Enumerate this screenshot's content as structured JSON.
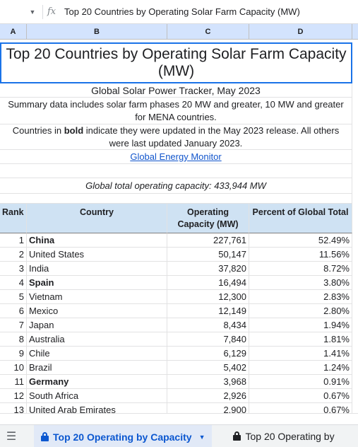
{
  "formula_bar": {
    "dropdown_icon": "caret-down-icon",
    "fx_label": "fx",
    "content": "Top 20 Countries by Operating Solar Farm Capacity (MW)"
  },
  "columns": [
    "A",
    "B",
    "C",
    "D"
  ],
  "sheet": {
    "title": "Top 20 Countries by Operating Solar Farm Capacity (MW)",
    "subtitle": "Global Solar Power Tracker, May 2023",
    "summary": "Summary data includes solar farm phases 20 MW and greater, 10 MW and greater for MENA countries.",
    "note_pre": "Countries in ",
    "note_bold": "bold",
    "note_post": " indicate they were updated in the May 2023 release. All others were last updated January 2023.",
    "link": "Global Energy Monitor",
    "total": "Global total operating capacity: 433,944 MW"
  },
  "table": {
    "headers": {
      "rank": "Rank",
      "country": "Country",
      "capacity": "Operating Capacity (MW)",
      "percent": "Percent of Global Total"
    },
    "rows": [
      {
        "rank": "1",
        "country": "China",
        "capacity": "227,761",
        "percent": "52.49%",
        "bold": true
      },
      {
        "rank": "2",
        "country": "United States",
        "capacity": "50,147",
        "percent": "11.56%",
        "bold": false
      },
      {
        "rank": "3",
        "country": "India",
        "capacity": "37,820",
        "percent": "8.72%",
        "bold": false
      },
      {
        "rank": "4",
        "country": "Spain",
        "capacity": "16,494",
        "percent": "3.80%",
        "bold": true
      },
      {
        "rank": "5",
        "country": "Vietnam",
        "capacity": "12,300",
        "percent": "2.83%",
        "bold": false
      },
      {
        "rank": "6",
        "country": "Mexico",
        "capacity": "12,149",
        "percent": "2.80%",
        "bold": false
      },
      {
        "rank": "7",
        "country": "Japan",
        "capacity": "8,434",
        "percent": "1.94%",
        "bold": false
      },
      {
        "rank": "8",
        "country": "Australia",
        "capacity": "7,840",
        "percent": "1.81%",
        "bold": false
      },
      {
        "rank": "9",
        "country": "Chile",
        "capacity": "6,129",
        "percent": "1.41%",
        "bold": false
      },
      {
        "rank": "10",
        "country": "Brazil",
        "capacity": "5,402",
        "percent": "1.24%",
        "bold": false
      },
      {
        "rank": "11",
        "country": "Germany",
        "capacity": "3,968",
        "percent": "0.91%",
        "bold": true
      },
      {
        "rank": "12",
        "country": "South Africa",
        "capacity": "2,926",
        "percent": "0.67%",
        "bold": false
      },
      {
        "rank": "13",
        "country": "United Arab Emirates",
        "capacity": "2,900",
        "percent": "0.67%",
        "bold": false
      }
    ]
  },
  "tabs": {
    "menu_icon": "hamburger-menu-icon",
    "active": "Top 20 Operating by Capacity",
    "inactive": "Top 20 Operating by"
  }
}
